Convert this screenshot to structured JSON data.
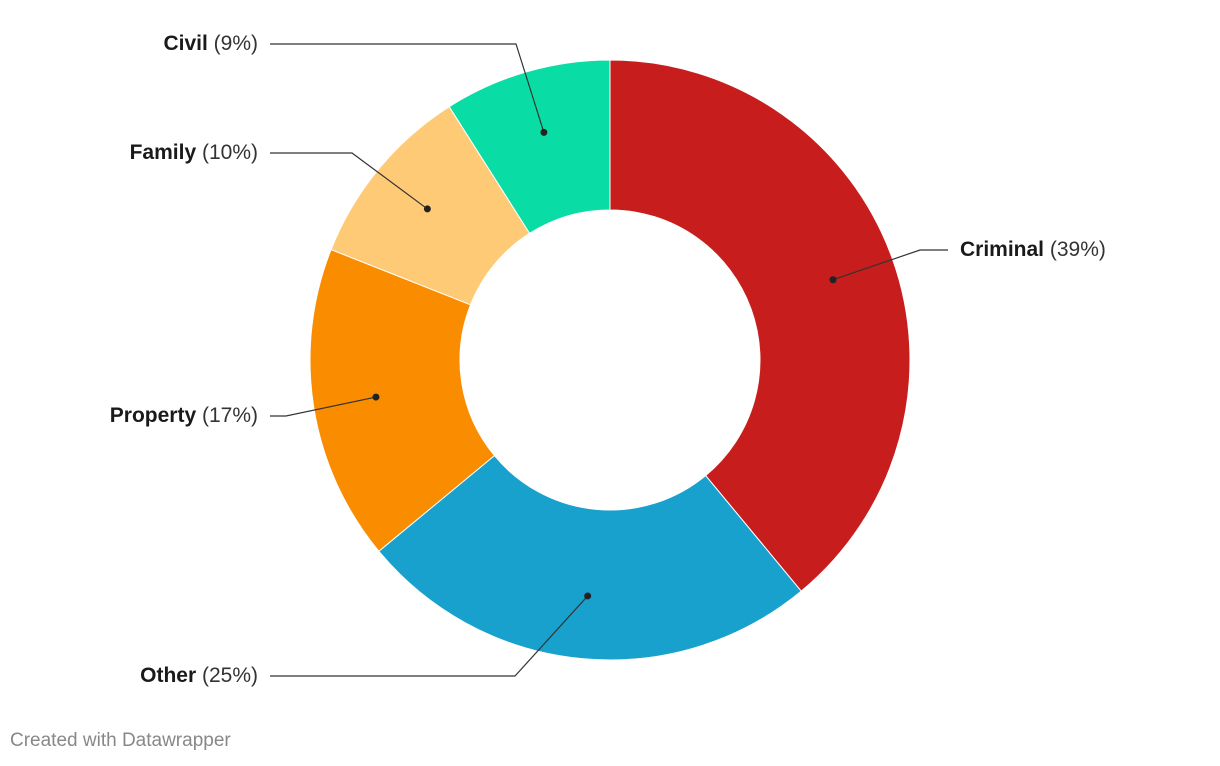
{
  "chart_data": {
    "type": "pie",
    "variant": "donut",
    "slices": [
      {
        "name": "Criminal",
        "value": 39,
        "pct_label": "(39%)",
        "color": "#c71e1d"
      },
      {
        "name": "Other",
        "value": 25,
        "pct_label": "(25%)",
        "color": "#18a1cd"
      },
      {
        "name": "Property",
        "value": 17,
        "pct_label": "(17%)",
        "color": "#fa8c00"
      },
      {
        "name": "Family",
        "value": 10,
        "pct_label": "(10%)",
        "color": "#ffca76"
      },
      {
        "name": "Civil",
        "value": 9,
        "pct_label": "(9%)",
        "color": "#09dca4"
      }
    ],
    "start_angle": "top, clockwise",
    "legend": "none"
  },
  "footer": {
    "credit": "Created with Datawrapper"
  }
}
